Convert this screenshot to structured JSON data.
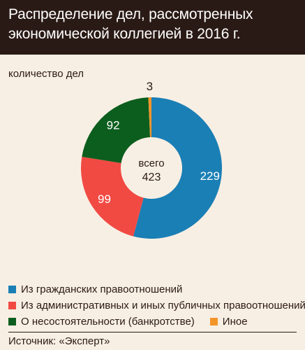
{
  "header": {
    "title_line1": "Распределение дел, рассмотренных",
    "title_line2": "экономической коллегией в 2016 г."
  },
  "unit_label": "количество дел",
  "chart_data": {
    "type": "pie",
    "title": "Распределение дел, рассмотренных экономической коллегией в 2016 г.",
    "unit": "количество дел",
    "center_label": "всего",
    "total": 423,
    "slices": [
      {
        "label": "Из гражданских правоотношений",
        "value": 229,
        "color": "#1a7fb5"
      },
      {
        "label": "Из административных и иных публичных правоотношений",
        "value": 99,
        "color": "#f14a43"
      },
      {
        "label": "О несостоятельности (банкротстве)",
        "value": 92,
        "color": "#0c5e1e"
      },
      {
        "label": "Иное",
        "value": 3,
        "color": "#f4952a"
      }
    ]
  },
  "source": "Источник: «Эксперт»"
}
